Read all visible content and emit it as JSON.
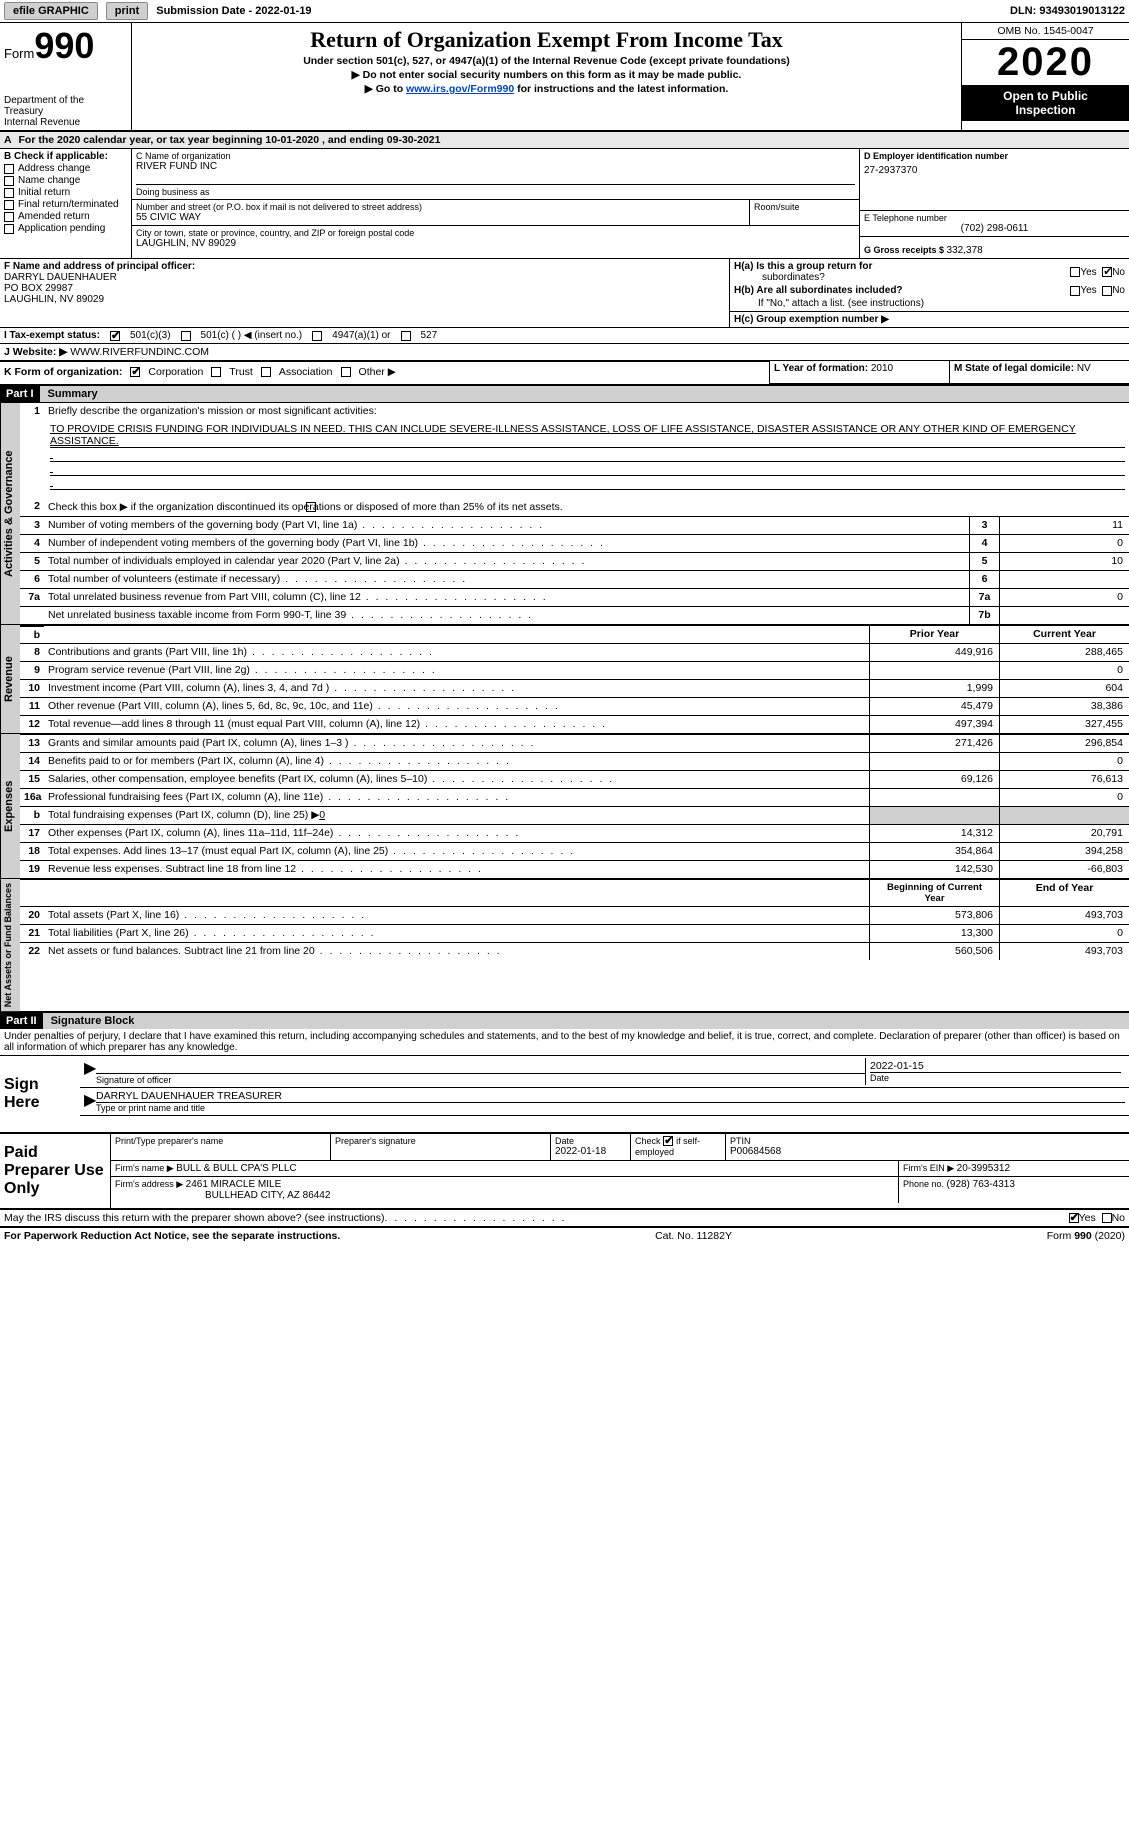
{
  "topbar": {
    "efile": "efile GRAPHIC",
    "print": "print",
    "submission_label": "Submission Date - ",
    "submission_date": "2022-01-19",
    "dln_label": "DLN: ",
    "dln": "93493019013122"
  },
  "header": {
    "form_word": "Form",
    "form_num": "990",
    "dept1": "Department of the",
    "dept2": "Treasury",
    "dept3": "Internal Revenue",
    "title": "Return of Organization Exempt From Income Tax",
    "sub1": "Under section 501(c), 527, or 4947(a)(1) of the Internal Revenue Code (except private foundations)",
    "sub2": "▶ Do not enter social security numbers on this form as it may be made public.",
    "sub3a": "▶ Go to ",
    "sub3link": "www.irs.gov/Form990",
    "sub3b": " for instructions and the latest information.",
    "omb": "OMB No. 1545-0047",
    "year": "2020",
    "inspection1": "Open to Public",
    "inspection2": "Inspection"
  },
  "rowA": {
    "prefix": "A",
    "text1": "For the 2020 calendar year, or tax year beginning ",
    "v1": "10-01-2020",
    "mid": " , and ending ",
    "v2": "09-30-2021"
  },
  "colB": {
    "hdr": "B Check if applicable:",
    "opts": [
      "Address change",
      "Name change",
      "Initial return",
      "Final return/terminated",
      "Amended return",
      "Application pending"
    ]
  },
  "colC": {
    "c_label": "C Name of organization",
    "c_val": "RIVER FUND INC",
    "dba_label": "Doing business as",
    "dba_val": "",
    "addr_label": "Number and street (or P.O. box if mail is not delivered to street address)",
    "addr_val": "55 CIVIC WAY",
    "room_label": "Room/suite",
    "room_val": "",
    "city_label": "City or town, state or province, country, and ZIP or foreign postal code",
    "city_val": "LAUGHLIN, NV  89029"
  },
  "colD": {
    "d_label": "D Employer identification number",
    "d_val": "27-2937370",
    "e_label": "E Telephone number",
    "e_val": "(702) 298-0611",
    "g_label": "G Gross receipts $ ",
    "g_val": "332,378"
  },
  "rowF": {
    "f_label": "F Name and address of principal officer:",
    "name": "DARRYL DAUENHAUER",
    "addr1": "PO BOX 29987",
    "addr2": "LAUGHLIN, NV  89029"
  },
  "rowH": {
    "ha_label": "H(a)  Is this a group return for",
    "ha_sub": "subordinates?",
    "ha_yes": "Yes",
    "ha_no": "No",
    "hb_label": "H(b)  Are all subordinates included?",
    "hb_yes": "Yes",
    "hb_no": "No",
    "hb_note": "If \"No,\" attach a list. (see instructions)",
    "hc_label": "H(c)  Group exemption number ▶"
  },
  "rowI": {
    "label": "I    Tax-exempt status:",
    "o1": "501(c)(3)",
    "o2": "501(c) (  ) ◀ (insert no.)",
    "o3": "4947(a)(1) or",
    "o4": "527"
  },
  "rowJ": {
    "label": "J    Website: ▶ ",
    "val": "WWW.RIVERFUNDINC.COM"
  },
  "rowK": {
    "label": "K Form of organization:",
    "o1": "Corporation",
    "o2": "Trust",
    "o3": "Association",
    "o4": "Other ▶"
  },
  "rowL": {
    "label": "L Year of formation: ",
    "val": "2010"
  },
  "rowM": {
    "label": "M State of legal domicile: ",
    "val": "NV"
  },
  "parts": {
    "p1": "Part I",
    "p1t": "Summary",
    "p2": "Part II",
    "p2t": "Signature Block"
  },
  "summary": {
    "l1_label": "Briefly describe the organization's mission or most significant activities:",
    "mission": "TO PROVIDE CRISIS FUNDING FOR INDIVIDUALS IN NEED. THIS CAN INCLUDE SEVERE-ILLNESS ASSISTANCE, LOSS OF LIFE ASSISTANCE, DISASTER ASSISTANCE OR ANY OTHER KIND OF EMERGENCY ASSISTANCE.",
    "l2": "Check this box ▶        if the organization discontinued its operations or disposed of more than 25% of its net assets.",
    "lines_gov": [
      {
        "n": "3",
        "t": "Number of voting members of the governing body (Part VI, line 1a)",
        "b": "3",
        "v": "11"
      },
      {
        "n": "4",
        "t": "Number of independent voting members of the governing body (Part VI, line 1b)",
        "b": "4",
        "v": "0"
      },
      {
        "n": "5",
        "t": "Total number of individuals employed in calendar year 2020 (Part V, line 2a)",
        "b": "5",
        "v": "10"
      },
      {
        "n": "6",
        "t": "Total number of volunteers (estimate if necessary)",
        "b": "6",
        "v": ""
      },
      {
        "n": "7a",
        "t": "Total unrelated business revenue from Part VIII, column (C), line 12",
        "b": "7a",
        "v": "0"
      },
      {
        "n": "",
        "t": "Net unrelated business taxable income from Form 990-T, line 39",
        "b": "7b",
        "v": ""
      }
    ],
    "hdr_row": {
      "n": "b",
      "prior": "Prior Year",
      "curr": "Current Year"
    },
    "lines_rev": [
      {
        "n": "8",
        "t": "Contributions and grants (Part VIII, line 1h)",
        "p": "449,916",
        "c": "288,465"
      },
      {
        "n": "9",
        "t": "Program service revenue (Part VIII, line 2g)",
        "p": "",
        "c": "0"
      },
      {
        "n": "10",
        "t": "Investment income (Part VIII, column (A), lines 3, 4, and 7d )",
        "p": "1,999",
        "c": "604"
      },
      {
        "n": "11",
        "t": "Other revenue (Part VIII, column (A), lines 5, 6d, 8c, 9c, 10c, and 11e)",
        "p": "45,479",
        "c": "38,386"
      },
      {
        "n": "12",
        "t": "Total revenue—add lines 8 through 11 (must equal Part VIII, column (A), line 12)",
        "p": "497,394",
        "c": "327,455"
      }
    ],
    "lines_exp": [
      {
        "n": "13",
        "t": "Grants and similar amounts paid (Part IX, column (A), lines 1–3 )",
        "p": "271,426",
        "c": "296,854"
      },
      {
        "n": "14",
        "t": "Benefits paid to or for members (Part IX, column (A), line 4)",
        "p": "",
        "c": "0"
      },
      {
        "n": "15",
        "t": "Salaries, other compensation, employee benefits (Part IX, column (A), lines 5–10)",
        "p": "69,126",
        "c": "76,613"
      },
      {
        "n": "16a",
        "t": "Professional fundraising fees (Part IX, column (A), line 11e)",
        "p": "",
        "c": "0"
      },
      {
        "n": "b",
        "t": "Total fundraising expenses (Part IX, column (D), line 25) ▶",
        "p": "shaded",
        "c": "shaded",
        "extra": "0"
      },
      {
        "n": "17",
        "t": "Other expenses (Part IX, column (A), lines 11a–11d, 11f–24e)",
        "p": "14,312",
        "c": "20,791"
      },
      {
        "n": "18",
        "t": "Total expenses. Add lines 13–17 (must equal Part IX, column (A), line 25)",
        "p": "354,864",
        "c": "394,258"
      },
      {
        "n": "19",
        "t": "Revenue less expenses. Subtract line 18 from line 12",
        "p": "142,530",
        "c": "-66,803"
      }
    ],
    "hdr_net": {
      "prior": "Beginning of Current Year",
      "curr": "End of Year"
    },
    "lines_net": [
      {
        "n": "20",
        "t": "Total assets (Part X, line 16)",
        "p": "573,806",
        "c": "493,703"
      },
      {
        "n": "21",
        "t": "Total liabilities (Part X, line 26)",
        "p": "13,300",
        "c": "0"
      },
      {
        "n": "22",
        "t": "Net assets or fund balances. Subtract line 21 from line 20",
        "p": "560,506",
        "c": "493,703"
      }
    ]
  },
  "sidelabels": {
    "gov": "Activities & Governance",
    "rev": "Revenue",
    "exp": "Expenses",
    "net": "Net Assets or Fund Balances"
  },
  "sig": {
    "penalties": "Under penalties of perjury, I declare that I have examined this return, including accompanying schedules and statements, and to the best of my knowledge and belief, it is true, correct, and complete. Declaration of preparer (other than officer) is based on all information of which preparer has any knowledge.",
    "sign_here": "Sign Here",
    "sig_of_officer": "Signature of officer",
    "date_label": "Date",
    "sig_date": "2022-01-15",
    "name_title": "DARRYL DAUENHAUER  TREASURER",
    "type_label": "Type or print name and title"
  },
  "prep": {
    "label": "Paid Preparer Use Only",
    "h1": "Print/Type preparer's name",
    "h2": "Preparer's signature",
    "h3": "Date",
    "h3v": "2022-01-18",
    "h4a": "Check",
    "h4b": "if self-employed",
    "h5": "PTIN",
    "h5v": "P00684568",
    "firm_name_l": "Firm's name    ▶ ",
    "firm_name": "BULL & BULL CPA'S PLLC",
    "firm_ein_l": "Firm's EIN ▶ ",
    "firm_ein": "20-3995312",
    "firm_addr_l": "Firm's address ▶ ",
    "firm_addr1": "2461 MIRACLE MILE",
    "firm_addr2": "BULLHEAD CITY, AZ  86442",
    "phone_l": "Phone no. ",
    "phone": "(928) 763-4313"
  },
  "discuss": {
    "text": "May the IRS discuss this return with the preparer shown above? (see instructions)",
    "yes": "Yes",
    "no": "No"
  },
  "footer": {
    "left": "For Paperwork Reduction Act Notice, see the separate instructions.",
    "mid": "Cat. No. 11282Y",
    "right": "Form 990 (2020)"
  }
}
